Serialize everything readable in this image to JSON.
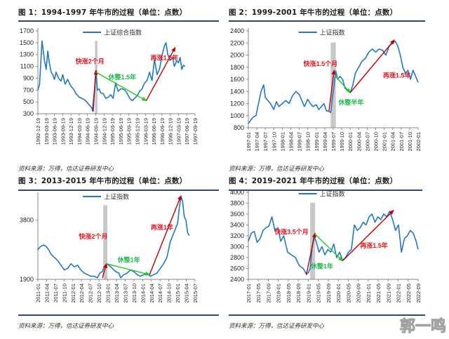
{
  "colors": {
    "line": "#1f78c8",
    "rise": "#c00000",
    "consolidate": "#1fcc1f",
    "shade": "#c8c8c8",
    "rule": "#2f4a6e",
    "annot_red": "#e8141e",
    "annot_green": "#1fb84a"
  },
  "source_text": "资料来源：万得，信达证券研发中心",
  "watermark": "郭一鸣",
  "chart_data": [
    {
      "type": "line",
      "title": "图 1：1994-1997 年牛市的过程（单位：点数）",
      "legend": "上证综合指数",
      "legend_position": "top-center",
      "ylim": [
        300,
        1700
      ],
      "yticks": [
        300,
        500,
        700,
        900,
        1100,
        1300,
        1500,
        1700
      ],
      "xticks": [
        "1992-12-19",
        "1993-03-19",
        "1993-06-19",
        "1993-09-19",
        "1993-12-19",
        "1994-03-19",
        "1994-06-19",
        "1994-09-19",
        "1994-12-19",
        "1995-03-19",
        "1995-06-19",
        "1995-09-19",
        "1995-12-19",
        "1996-03-19",
        "1996-06-19",
        "1996-09-19",
        "1996-12-19",
        "1997-03-19",
        "1997-06-19",
        "1997-09-19"
      ],
      "x_range": [
        0,
        19
      ],
      "shade": [
        6.9,
        7.2
      ],
      "series": [
        {
          "name": "上证综合指数",
          "x": [
            0,
            0.2,
            0.5,
            0.8,
            1.0,
            1.2,
            1.4,
            1.6,
            1.8,
            2.0,
            2.2,
            2.5,
            2.8,
            3.0,
            3.3,
            3.6,
            4.0,
            4.3,
            4.6,
            5.0,
            5.3,
            5.6,
            5.9,
            6.2,
            6.5,
            6.7,
            6.85,
            7.0,
            7.1,
            7.2,
            7.4,
            7.6,
            7.9,
            8.2,
            8.5,
            8.8,
            9.1,
            9.4,
            9.7,
            10.0,
            10.2,
            10.5,
            10.8,
            11.1,
            11.4,
            11.7,
            12.0,
            12.3,
            12.6,
            12.9,
            13.2,
            13.5,
            13.8,
            14.1,
            14.4,
            14.7,
            15.0,
            15.3,
            15.5,
            15.7,
            16.0,
            16.3,
            16.5,
            16.8,
            17.0,
            17.2,
            17.4,
            17.6,
            17.8
          ],
          "y": [
            700,
            800,
            1530,
            1200,
            1050,
            1360,
            1150,
            1000,
            960,
            880,
            1000,
            900,
            850,
            960,
            800,
            880,
            760,
            720,
            640,
            580,
            560,
            540,
            500,
            450,
            400,
            340,
            700,
            1030,
            860,
            700,
            720,
            650,
            640,
            560,
            580,
            620,
            560,
            820,
            680,
            720,
            720,
            700,
            640,
            560,
            520,
            560,
            600,
            680,
            720,
            820,
            860,
            1000,
            860,
            1220,
            960,
            1050,
            1280,
            1450,
            1500,
            1300,
            1200,
            1250,
            1100,
            1200,
            1160,
            1250,
            1050,
            1120,
            1100
          ]
        }
      ],
      "annotations": [
        {
          "text": "快涨2个月",
          "color": "red",
          "from": [
            6.6,
            340
          ],
          "to": [
            7.05,
            1030
          ],
          "label_at": [
            6.3,
            1150
          ]
        },
        {
          "text": "休整1.5年",
          "color": "green",
          "from": [
            7.05,
            1000
          ],
          "to": [
            13.1,
            520
          ],
          "label_at": [
            10.2,
            880
          ]
        },
        {
          "text": "再涨1.5年",
          "color": "red",
          "from": [
            13.1,
            520
          ],
          "to": [
            16.6,
            1420
          ],
          "label_at": [
            15.3,
            1210
          ]
        }
      ]
    },
    {
      "type": "line",
      "title": "图 2：1999-2001 年牛市的过程（单位：点数）",
      "legend": "上证指数",
      "legend_position": "top-center",
      "ylim": [
        800,
        2400
      ],
      "yticks": [
        800,
        1000,
        1200,
        1400,
        1600,
        1800,
        2000,
        2200,
        2400
      ],
      "xticks": [
        "1997-01",
        "1997-04",
        "1997-07",
        "1997-10",
        "1998-01",
        "1998-04",
        "1998-07",
        "1998-10",
        "1999-01",
        "1999-04",
        "1999-07",
        "1999-10",
        "2000-01",
        "2000-04",
        "2000-07",
        "2000-10",
        "2001-01",
        "2001-04",
        "2001-07",
        "2001-10",
        "2002-01"
      ],
      "x_range": [
        0,
        20
      ],
      "shade": [
        9.7,
        10.3
      ],
      "series": [
        {
          "name": "上证指数",
          "x": [
            0,
            0.3,
            0.6,
            0.9,
            1.2,
            1.5,
            1.8,
            2.0,
            2.3,
            2.6,
            3.0,
            3.3,
            3.6,
            4.0,
            4.4,
            4.8,
            5.2,
            5.6,
            6.0,
            6.3,
            6.6,
            7.0,
            7.3,
            7.6,
            8.0,
            8.3,
            8.6,
            8.9,
            9.2,
            9.5,
            9.7,
            9.9,
            10.1,
            10.3,
            10.5,
            10.8,
            11.1,
            11.4,
            11.7,
            12.0,
            12.3,
            12.6,
            13.0,
            13.4,
            13.8,
            14.2,
            14.6,
            15.0,
            15.4,
            15.8,
            16.2,
            16.6,
            17.0,
            17.3,
            17.6,
            17.9,
            18.2,
            18.5,
            18.8,
            19.1,
            19.4,
            19.7,
            20.0
          ],
          "y": [
            870,
            930,
            980,
            1000,
            1200,
            1400,
            1510,
            1300,
            1250,
            1200,
            1100,
            1230,
            1150,
            1200,
            1250,
            1200,
            1330,
            1400,
            1350,
            1250,
            1150,
            1270,
            1200,
            1150,
            1180,
            1100,
            1150,
            1200,
            1080,
            1070,
            1050,
            1300,
            1500,
            1740,
            1600,
            1650,
            1600,
            1450,
            1420,
            1380,
            1500,
            1700,
            1800,
            1900,
            1950,
            2050,
            2100,
            2050,
            2100,
            2080,
            2000,
            2150,
            2200,
            2230,
            2150,
            2000,
            1800,
            1700,
            1750,
            1600,
            1750,
            1650,
            1550
          ]
        }
      ],
      "annotations": [
        {
          "text": "快涨1.5个月",
          "color": "red",
          "from": [
            9.5,
            1080
          ],
          "to": [
            10.1,
            1750
          ],
          "label_at": [
            8.5,
            1820
          ]
        },
        {
          "text": "休整半年",
          "color": "green",
          "from": [
            10.2,
            1660
          ],
          "to": [
            12.0,
            1380
          ],
          "label_at": [
            12.1,
            1180
          ]
        },
        {
          "text": "再涨1.5年",
          "color": "red",
          "from": [
            12.0,
            1380
          ],
          "to": [
            17.2,
            2250
          ],
          "label_at": [
            17.5,
            1630
          ]
        }
      ]
    },
    {
      "type": "line",
      "title": "图 3：2013-2015 年牛市的过程（单位：点数）",
      "legend": "上证指数",
      "legend_position": "top-center",
      "ylim": [
        1900,
        4600
      ],
      "yticks": [
        1900,
        3800
      ],
      "xticks": [
        "2011-01",
        "2011-04",
        "2011-07",
        "2011-10",
        "2012-01",
        "2012-04",
        "2012-07",
        "2012-10",
        "2013-01",
        "2013-04",
        "2013-07",
        "2013-10",
        "2014-01",
        "2014-04",
        "2014-07",
        "2014-10",
        "2015-01",
        "2015-04",
        "2015-07"
      ],
      "x_range": [
        0,
        19
      ],
      "shade": [
        7.9,
        8.4
      ],
      "series": [
        {
          "name": "上证指数",
          "x": [
            0,
            0.3,
            0.7,
            1.0,
            1.3,
            1.6,
            2.0,
            2.4,
            2.8,
            3.2,
            3.6,
            4.0,
            4.4,
            4.8,
            5.2,
            5.6,
            6.0,
            6.4,
            6.8,
            7.2,
            7.5,
            7.8,
            8.0,
            8.3,
            8.6,
            9.0,
            9.4,
            9.8,
            10.0,
            10.4,
            10.8,
            11.2,
            11.6,
            12.0,
            12.4,
            12.8,
            13.2,
            13.6,
            14.0,
            14.4,
            14.8,
            15.2,
            15.6,
            16.0,
            16.3,
            16.6,
            16.9,
            17.1,
            17.3,
            17.5,
            17.7,
            17.9,
            18.1,
            18.3
          ],
          "y": [
            2850,
            2950,
            3000,
            2950,
            2850,
            2700,
            2600,
            2500,
            2350,
            2200,
            2250,
            2400,
            2300,
            2350,
            2200,
            2100,
            2050,
            2000,
            2000,
            1950,
            2100,
            2150,
            2300,
            2400,
            2350,
            2250,
            2150,
            2100,
            1950,
            2050,
            2100,
            2200,
            2150,
            2050,
            2000,
            2050,
            2100,
            2000,
            2050,
            2100,
            2250,
            2400,
            2600,
            3100,
            3300,
            3500,
            3700,
            4200,
            4550,
            4400,
            3900,
            3800,
            3400,
            3300
          ]
        }
      ],
      "annotations": [
        {
          "text": "快涨2个月",
          "color": "red",
          "from": [
            7.8,
            1950
          ],
          "to": [
            8.3,
            2400
          ],
          "label_at": [
            6.7,
            3200
          ]
        },
        {
          "text": "休整1年",
          "color": "green",
          "from": [
            8.3,
            2400
          ],
          "to": [
            13.5,
            2050
          ],
          "label_at": [
            11.0,
            2450
          ]
        },
        {
          "text": "再涨1年",
          "color": "red",
          "from": [
            13.5,
            2050
          ],
          "to": [
            17.3,
            4580
          ],
          "label_at": [
            15.0,
            3500
          ]
        }
      ]
    },
    {
      "type": "line",
      "title": "图 4：2019-2021 年牛市的过程（单位：点数）",
      "legend": "上证指数",
      "legend_position": "top-center",
      "ylim": [
        2400,
        4000
      ],
      "yticks": [
        2400,
        2600,
        2800,
        3000,
        3200,
        3400,
        3600,
        3800,
        4000
      ],
      "xticks": [
        "2017-01",
        "2017-05",
        "2017-09",
        "2018-01",
        "2018-05",
        "2018-09",
        "2019-01",
        "2019-05",
        "2019-09",
        "2020-01",
        "2020-05",
        "2020-09",
        "2021-01",
        "2021-05",
        "2021-09",
        "2022-01",
        "2022-05",
        "2022-09"
      ],
      "x_range": [
        0,
        17.3
      ],
      "shade": [
        6.3,
        6.8
      ],
      "series": [
        {
          "name": "上证指数",
          "x": [
            0,
            0.3,
            0.6,
            0.9,
            1.2,
            1.5,
            1.8,
            2.1,
            2.4,
            2.7,
            3.0,
            3.3,
            3.6,
            4.0,
            4.4,
            4.8,
            5.2,
            5.6,
            5.9,
            6.1,
            6.3,
            6.5,
            6.7,
            6.9,
            7.2,
            7.5,
            7.8,
            8.1,
            8.4,
            8.7,
            9.0,
            9.3,
            9.6,
            9.9,
            10.2,
            10.5,
            10.8,
            11.1,
            11.4,
            11.7,
            12.0,
            12.3,
            12.6,
            12.9,
            13.2,
            13.5,
            13.8,
            14.1,
            14.4,
            14.7,
            15.0,
            15.3,
            15.6,
            15.9,
            16.2,
            16.5,
            16.8,
            17.1,
            17.3
          ],
          "y": [
            3100,
            3250,
            3280,
            3080,
            3150,
            3300,
            3350,
            3380,
            3550,
            3300,
            3350,
            3100,
            3200,
            2900,
            2850,
            2800,
            2650,
            2600,
            2500,
            2520,
            2600,
            3000,
            3200,
            3100,
            2900,
            3000,
            2850,
            2950,
            2900,
            3050,
            2800,
            2900,
            2750,
            2800,
            2900,
            2950,
            3400,
            3300,
            3350,
            3450,
            3400,
            3550,
            3600,
            3450,
            3550,
            3500,
            3600,
            3550,
            3650,
            3500,
            3300,
            3400,
            2900,
            3150,
            3200,
            3300,
            3250,
            3100,
            2950
          ]
        }
      ],
      "annotations": [
        {
          "text": "快涨3.5个月",
          "color": "red",
          "from": [
            5.9,
            2480
          ],
          "to": [
            6.8,
            3250
          ],
          "label_at": [
            4.4,
            3230
          ]
        },
        {
          "text": "休整1年",
          "color": "green",
          "from": [
            6.8,
            3230
          ],
          "to": [
            9.6,
            2740
          ],
          "label_at": [
            7.5,
            2600
          ]
        },
        {
          "text": "再涨1.5年",
          "color": "red",
          "from": [
            9.6,
            2740
          ],
          "to": [
            14.8,
            3670
          ],
          "label_at": [
            12.8,
            2980
          ]
        }
      ]
    }
  ]
}
